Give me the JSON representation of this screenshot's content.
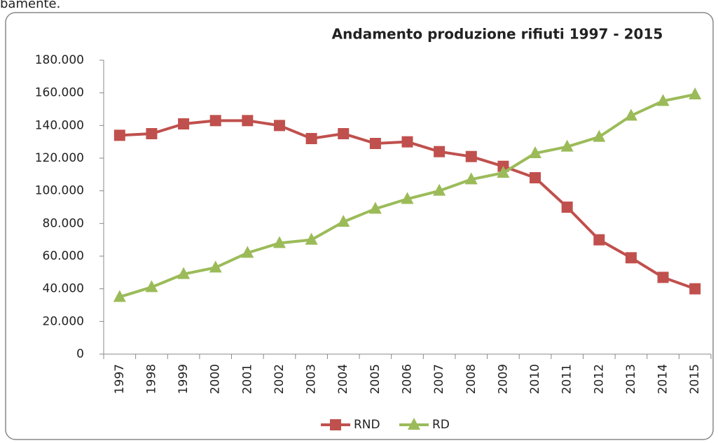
{
  "chart_data": {
    "type": "line",
    "title": "Andamento produzione rifiuti 1997 - 2015",
    "annotation": "bamente.",
    "categories": [
      "1997",
      "1998",
      "1999",
      "2000",
      "2001",
      "2002",
      "2003",
      "2004",
      "2005",
      "2006",
      "2007",
      "2008",
      "2009",
      "2010",
      "2011",
      "2012",
      "2013",
      "2014",
      "2015"
    ],
    "series": [
      {
        "name": "RND",
        "color": "#c0504d",
        "marker": "square",
        "values": [
          134000,
          135000,
          141000,
          143000,
          143000,
          140000,
          132000,
          135000,
          129000,
          130000,
          124000,
          121000,
          115000,
          108000,
          90000,
          70000,
          59000,
          47000,
          40000
        ]
      },
      {
        "name": "RD",
        "color": "#9bbb59",
        "marker": "triangle",
        "values": [
          35000,
          41000,
          49000,
          53000,
          62000,
          68000,
          70000,
          81000,
          89000,
          95000,
          100000,
          107000,
          111000,
          123000,
          127000,
          133000,
          146000,
          155000,
          159000
        ]
      }
    ],
    "ylim": [
      0,
      180000
    ],
    "yticks": [
      0,
      {
        "value": 20000,
        "label": "20.000"
      },
      {
        "value": 40000,
        "label": "40.000"
      },
      {
        "value": 60000,
        "label": "60.000"
      },
      {
        "value": 80000,
        "label": "80.000"
      },
      {
        "value": 100000,
        "label": "100.000"
      },
      {
        "value": 120000,
        "label": "120.000"
      },
      {
        "value": 140000,
        "label": "140.000"
      },
      {
        "value": 160000,
        "label": "160.000"
      },
      {
        "value": 180000,
        "label": "180.000"
      }
    ],
    "grid": false,
    "legend": "bottom"
  }
}
